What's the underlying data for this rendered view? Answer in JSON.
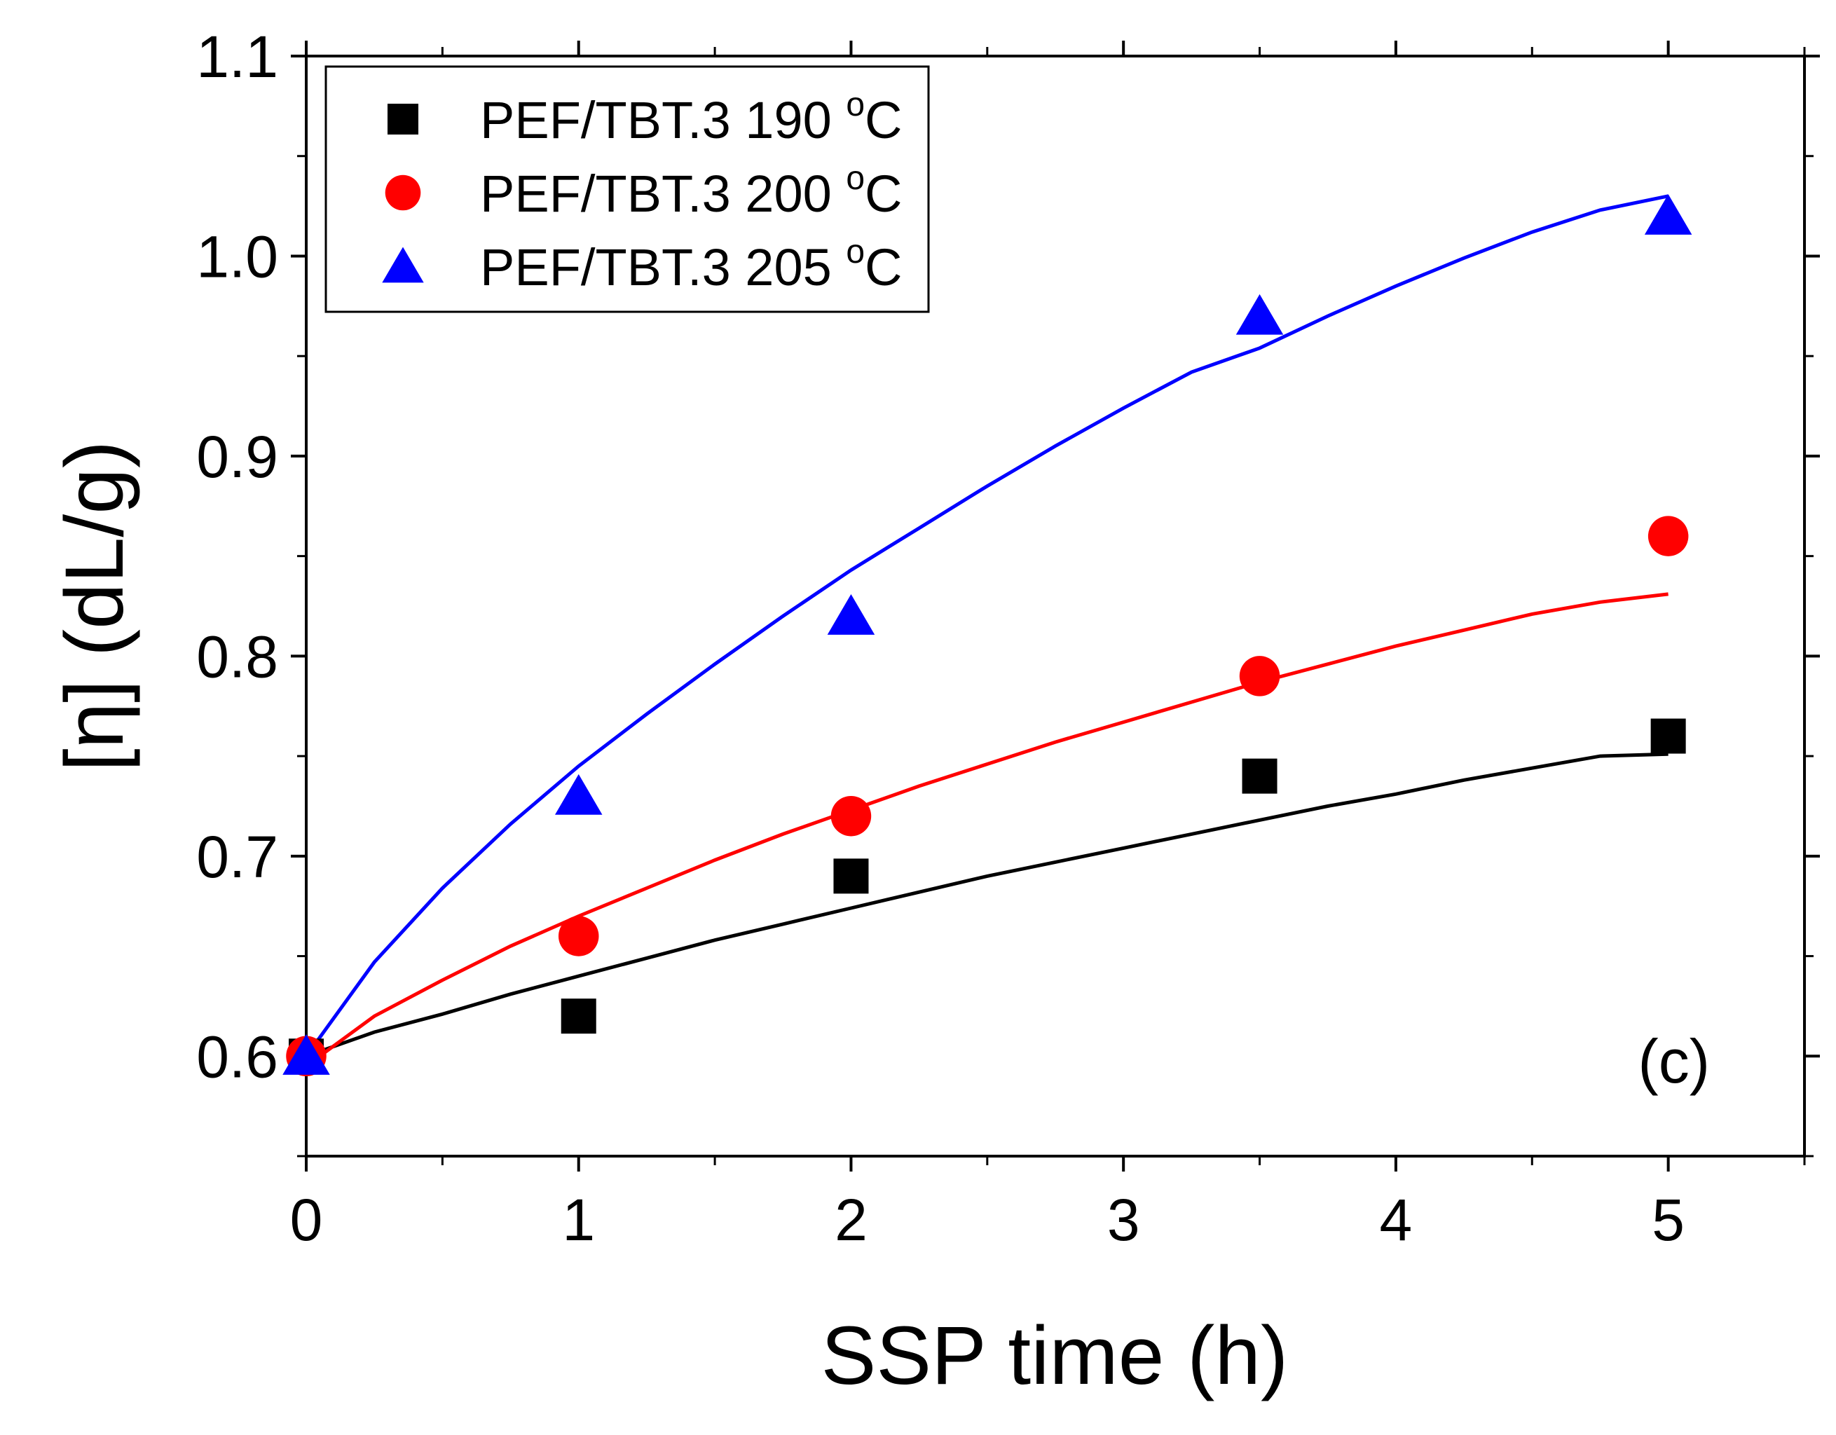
{
  "chart_data": {
    "type": "scatter",
    "xlabel": "SSP time (h)",
    "ylabel": "[η] (dL/g)",
    "xlim": [
      0,
      5.5
    ],
    "ylim": [
      0.55,
      1.1
    ],
    "xticks": [
      "0",
      "1",
      "2",
      "3",
      "4",
      "5"
    ],
    "yticks": [
      "0.6",
      "0.7",
      "0.8",
      "0.9",
      "1.0",
      "1.1"
    ],
    "grid": false,
    "legend_position": "top-left",
    "panel_label": "(c)",
    "x": [
      0,
      1,
      2,
      3.5,
      5
    ],
    "series": [
      {
        "name": "PEF/TBT.3 190",
        "unit_sup": "o",
        "unit": "C",
        "marker": "square",
        "color": "#000000",
        "values": [
          0.6,
          0.62,
          0.69,
          0.74,
          0.76
        ],
        "fit": {
          "x": [
            0,
            0.25,
            0.5,
            0.75,
            1,
            1.25,
            1.5,
            1.75,
            2,
            2.25,
            2.5,
            2.75,
            3,
            3.25,
            3.5,
            3.75,
            4,
            4.25,
            4.5,
            4.75,
            5
          ],
          "y": [
            0.6,
            0.612,
            0.621,
            0.631,
            0.64,
            0.649,
            0.658,
            0.666,
            0.674,
            0.682,
            0.69,
            0.697,
            0.704,
            0.711,
            0.718,
            0.725,
            0.731,
            0.738,
            0.744,
            0.75,
            0.751
          ]
        }
      },
      {
        "name": "PEF/TBT.3 200",
        "unit_sup": "o",
        "unit": "C",
        "marker": "circle",
        "color": "#ff0000",
        "values": [
          0.6,
          0.66,
          0.72,
          0.79,
          0.86
        ],
        "fit": {
          "x": [
            0,
            0.25,
            0.5,
            0.75,
            1,
            1.25,
            1.5,
            1.75,
            2,
            2.25,
            2.5,
            2.75,
            3,
            3.25,
            3.5,
            3.75,
            4,
            4.25,
            4.5,
            4.75,
            5
          ],
          "y": [
            0.595,
            0.62,
            0.638,
            0.655,
            0.67,
            0.684,
            0.698,
            0.711,
            0.723,
            0.735,
            0.746,
            0.757,
            0.767,
            0.777,
            0.787,
            0.796,
            0.805,
            0.813,
            0.821,
            0.827,
            0.831
          ]
        }
      },
      {
        "name": "PEF/TBT.3 205",
        "unit_sup": "o",
        "unit": "C",
        "marker": "triangle",
        "color": "#0000ff",
        "values": [
          0.6,
          0.73,
          0.82,
          0.97,
          1.02
        ],
        "fit": {
          "x": [
            0,
            0.25,
            0.5,
            0.75,
            1,
            1.25,
            1.5,
            1.75,
            2,
            2.25,
            2.5,
            2.75,
            3,
            3.25,
            3.5,
            3.75,
            4,
            4.25,
            4.5,
            4.75,
            5
          ],
          "y": [
            0.6,
            0.647,
            0.684,
            0.716,
            0.745,
            0.771,
            0.796,
            0.82,
            0.843,
            0.864,
            0.885,
            0.905,
            0.924,
            0.942,
            0.954,
            0.97,
            0.985,
            0.999,
            1.012,
            1.023,
            1.03
          ]
        }
      }
    ]
  }
}
